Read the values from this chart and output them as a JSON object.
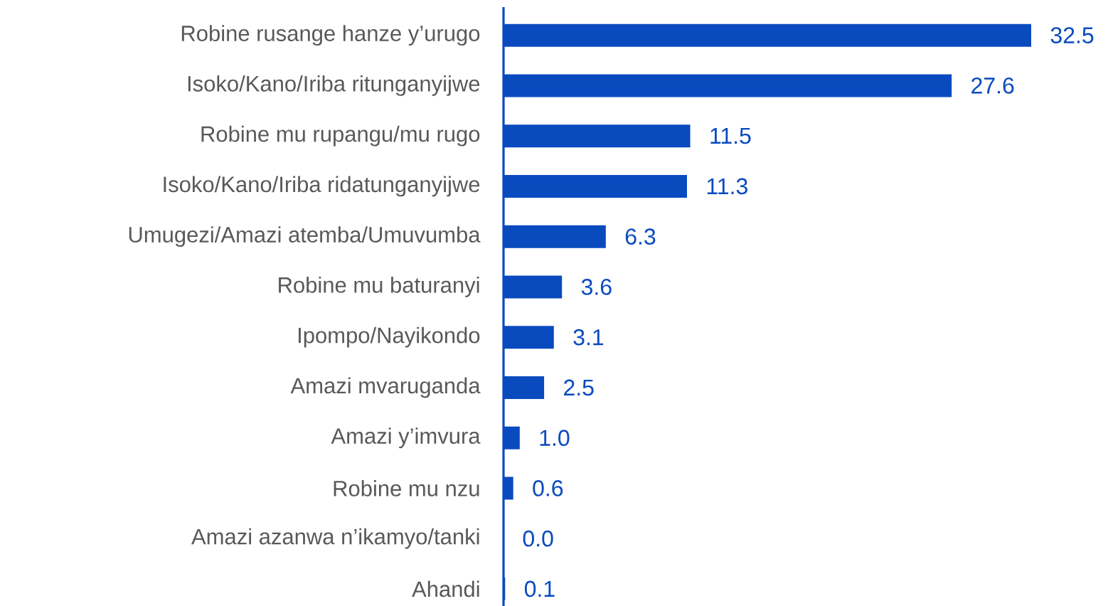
{
  "chart_data": {
    "type": "bar",
    "orientation": "horizontal",
    "categories": [
      "Robine rusange hanze y’urugo",
      "Isoko/Kano/Iriba ritunganyijwe",
      "Robine mu rupangu/mu rugo",
      "Isoko/Kano/Iriba ridatunganyijwe",
      "Umugezi/Amazi atemba/Umuvumba",
      "Robine mu baturanyi",
      "Ipompo/Nayikondo",
      "Amazi mvaruganda",
      "Amazi y’imvura",
      "Robine mu nzu",
      "Amazi azanwa n’ikamyo/tanki",
      "Ahandi"
    ],
    "values": [
      32.5,
      27.6,
      11.5,
      11.3,
      6.3,
      3.6,
      3.1,
      2.5,
      1.0,
      0.6,
      0.0,
      0.1
    ],
    "value_labels": [
      "32.5",
      "27.6",
      "11.5",
      "11.3",
      "6.3",
      "3.6",
      "3.1",
      "2.5",
      "1.0",
      "0.6",
      "0.0",
      "0.1"
    ],
    "color": "#0a4abf"
  }
}
